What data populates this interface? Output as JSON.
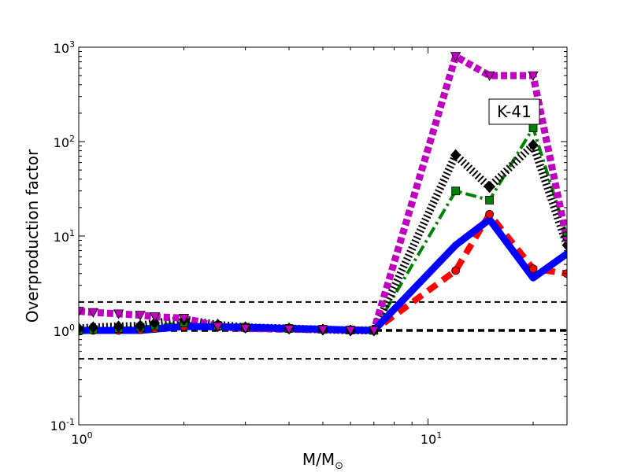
{
  "chart_data": {
    "type": "line",
    "title": "",
    "annotation": "K-41",
    "xlabel_main": "M/M",
    "xlabel_sub": "⊙",
    "ylabel": "Overproduction factor",
    "xscale": "log",
    "yscale": "log",
    "xlim": [
      1,
      25
    ],
    "ylim": [
      0.1,
      1000
    ],
    "xticks": [
      {
        "value": 1,
        "base": "10",
        "exp": "0"
      },
      {
        "value": 10,
        "base": "10",
        "exp": "1"
      }
    ],
    "yticks": [
      {
        "value": 0.1,
        "base": "10",
        "exp": "-1"
      },
      {
        "value": 1,
        "base": "10",
        "exp": "0"
      },
      {
        "value": 10,
        "base": "10",
        "exp": "1"
      },
      {
        "value": 100,
        "base": "10",
        "exp": "2"
      },
      {
        "value": 1000,
        "base": "10",
        "exp": "3"
      }
    ],
    "reference_lines": [
      0.5,
      1,
      2
    ],
    "series": [
      {
        "color": "#ff0000",
        "linestyle": "dashed",
        "marker": "circle",
        "x": [
          1,
          1.1,
          1.3,
          1.5,
          1.65,
          2,
          2.5,
          3,
          4,
          5,
          6,
          7,
          12,
          15,
          20,
          25
        ],
        "y": [
          0.98,
          1.0,
          1.0,
          1.02,
          1.05,
          1.1,
          1.08,
          1.05,
          1.03,
          1.02,
          1.0,
          1.0,
          4.3,
          17,
          4.5,
          4.0
        ]
      },
      {
        "color": "#008000",
        "linestyle": "dashdot",
        "marker": "square",
        "x": [
          1,
          1.1,
          1.3,
          1.5,
          1.65,
          2,
          2.5,
          3,
          4,
          5,
          6,
          7,
          12,
          15,
          20,
          25
        ],
        "y": [
          1.0,
          1.02,
          1.05,
          1.08,
          1.12,
          1.2,
          1.12,
          1.08,
          1.05,
          1.03,
          1.01,
          1.0,
          30,
          24,
          140,
          10
        ]
      },
      {
        "color": "#000000",
        "linestyle": "dotted",
        "marker": "diamond",
        "x": [
          1,
          1.1,
          1.3,
          1.5,
          1.65,
          2,
          2.5,
          3,
          4,
          5,
          6,
          7,
          12,
          15,
          20,
          25
        ],
        "y": [
          1.05,
          1.08,
          1.1,
          1.12,
          1.2,
          1.3,
          1.15,
          1.08,
          1.05,
          1.02,
          1.0,
          1.0,
          72,
          33,
          92,
          8
        ]
      },
      {
        "color": "#0000ff",
        "linestyle": "solid",
        "marker": "none",
        "x": [
          1,
          1.5,
          2,
          3,
          4,
          5,
          6,
          7,
          12,
          15,
          20,
          25
        ],
        "y": [
          1.0,
          1.0,
          1.1,
          1.08,
          1.05,
          1.03,
          1.01,
          1.0,
          8.0,
          15,
          3.6,
          6.5
        ]
      },
      {
        "color": "#bf00bf",
        "linestyle": "dotted",
        "marker": "triangle-down",
        "x": [
          1,
          1.1,
          1.3,
          1.5,
          1.65,
          2,
          2.5,
          3,
          4,
          5,
          6,
          7,
          12,
          15,
          20,
          25
        ],
        "y": [
          1.6,
          1.55,
          1.5,
          1.45,
          1.4,
          1.35,
          1.1,
          1.05,
          1.03,
          1.02,
          1.0,
          1.0,
          800,
          500,
          500,
          9
        ]
      }
    ]
  }
}
